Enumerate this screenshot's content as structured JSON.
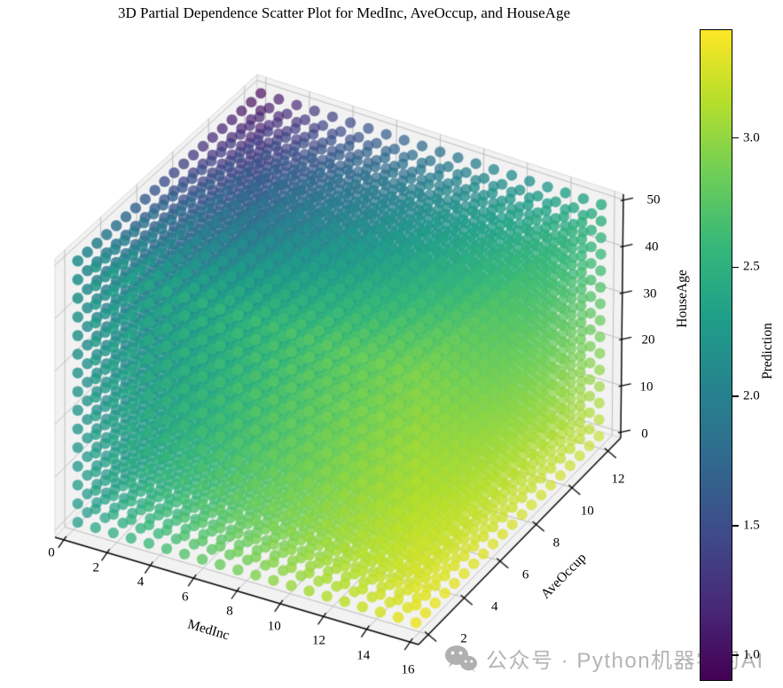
{
  "figure": {
    "title": "3D Partial Dependence Scatter Plot for MedInc, AveOccup, and HouseAge",
    "background": "#ffffff"
  },
  "chart_data": {
    "type": "scatter",
    "projection": "3d",
    "title": "3D Partial Dependence Scatter Plot for MedInc, AveOccup, and HouseAge",
    "axes": {
      "x": {
        "label": "MedInc",
        "ticks": [
          0,
          2,
          4,
          6,
          8,
          10,
          12,
          14,
          16
        ],
        "range": [
          -0.4,
          16.4
        ]
      },
      "y": {
        "label": "AveOccup",
        "ticks": [
          2,
          4,
          6,
          8,
          10,
          12
        ],
        "range": [
          1.45,
          12.7
        ]
      },
      "z": {
        "label": "HouseAge",
        "ticks": [
          0,
          10,
          20,
          30,
          40,
          50
        ],
        "range": [
          -1.3,
          51.2
        ]
      }
    },
    "colorbar": {
      "label": "Prediction",
      "tick_labels": [
        "1.0",
        "1.5",
        "2.0",
        "2.5",
        "3.0"
      ],
      "tick_values": [
        1.0,
        1.5,
        2.0,
        2.5,
        3.0
      ],
      "vmin": 0.9,
      "vmax": 3.42,
      "colormap": "viridis"
    },
    "grid": {
      "nx": 20,
      "ny": 20,
      "nz": 15,
      "x_margin": [
        0.035,
        0.965
      ],
      "y_margin": [
        0.05,
        0.955
      ],
      "z_margin": [
        0.03,
        0.975
      ]
    },
    "prediction_surface_approx": {
      "description": "pred=(1-w)*p0+w*p16 ; w=mn^0.72 ; p0=2.2-1.5*an^0.8*(0.18+0.82*hn) ; p16=3.4-0.42*hn-an*(0.15+0.4*hn) ; mn,an,hn = normalized MedInc, AveOccup, HouseAge",
      "w_exp": 0.72,
      "p0": {
        "c": 2.2,
        "k": 1.5,
        "a_exp": 0.8,
        "h0": 0.18,
        "h1": 0.82
      },
      "p16": {
        "c": 3.4,
        "kh": 0.42,
        "ka0": 0.15,
        "ka1": 0.4
      },
      "clamp": [
        0.9,
        3.42
      ]
    },
    "style": {
      "point_radius": 6.3,
      "pane_color": "#f2f2f2",
      "pane_edge_color": "#d9d9d9",
      "grid_color": "#bdbdbd",
      "axis_color": "#000000",
      "viridis_stops": [
        "#440154",
        "#482878",
        "#3e4a89",
        "#31688e",
        "#26828e",
        "#1f9e89",
        "#35b779",
        "#6ece58",
        "#b5de2b",
        "#fde725"
      ]
    }
  },
  "watermark": {
    "icon": "wechat-icon",
    "text": "公众号 · Python机器学习AI",
    "color": "#b4b4b4"
  }
}
